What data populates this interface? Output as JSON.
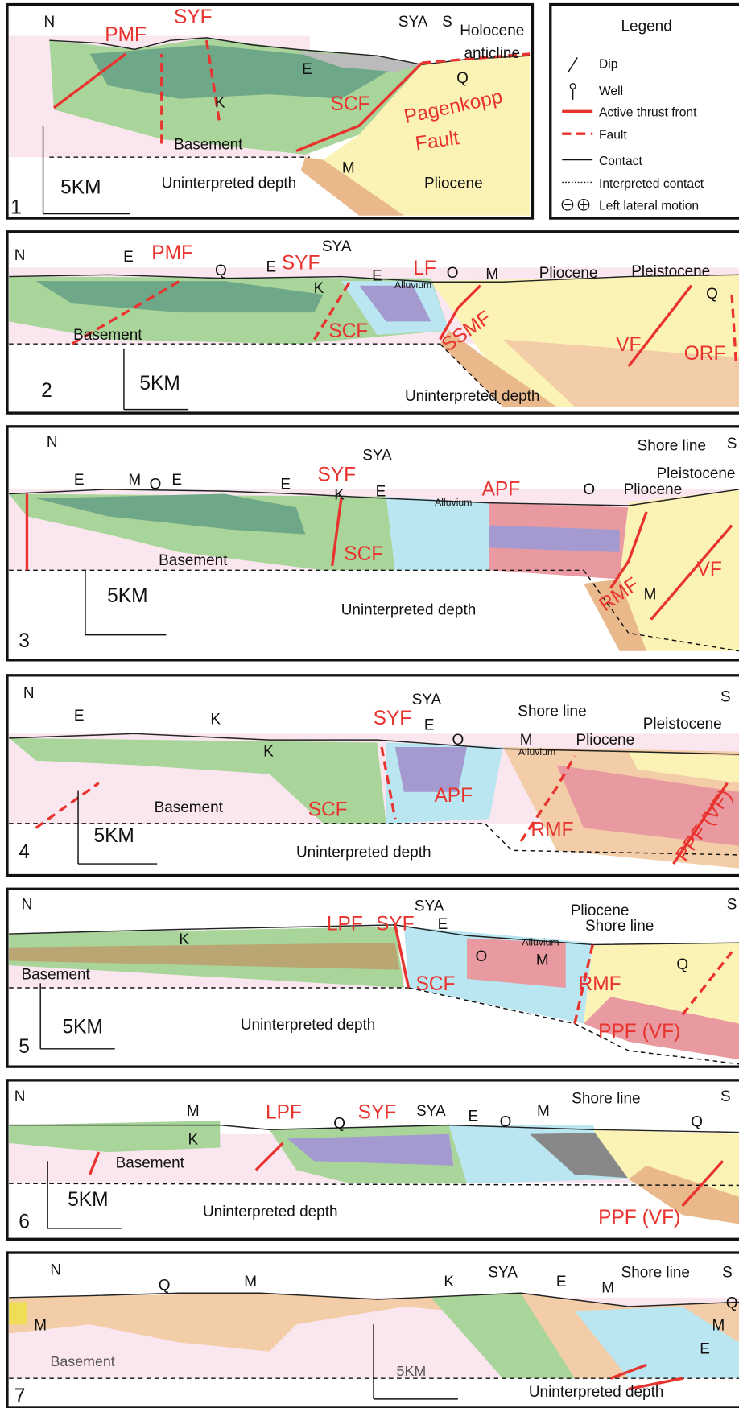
{
  "legend": {
    "title": "Legend",
    "items": [
      "Dip",
      "Well",
      "Active thrust front",
      "Fault",
      "Contact",
      "Interpreted contact",
      "Left lateral motion"
    ]
  },
  "sections": [
    {
      "labels": [
        "N",
        "PMF",
        "SYF",
        "SYA",
        "S",
        "Holocene",
        "anticline",
        "Q",
        "E",
        "K",
        "SCF",
        "Pagenkopp",
        "Fault",
        "Basement",
        "M",
        "Pliocene",
        "Uninterpreted depth",
        "5KM",
        "1"
      ]
    },
    {
      "labels": [
        "N",
        "E",
        "PMF",
        "Q",
        "E",
        "SYF",
        "SYA",
        "K",
        "E",
        "LF",
        "O",
        "M",
        "Alluvium",
        "Pliocene",
        "Pleistocene",
        "Q",
        "Basement",
        "SCF",
        "SSMF",
        "VF",
        "ORF",
        "5KM",
        "Uninterpreted depth",
        "2"
      ]
    },
    {
      "labels": [
        "N",
        "SYA",
        "Shore line",
        "S",
        "Pleistocene",
        "SYF",
        "E",
        "M",
        "O",
        "E",
        "E",
        "K",
        "E",
        "APF",
        "Alluvium",
        "O",
        "Pliocene",
        "Basement",
        "SCF",
        "RMF",
        "VF",
        "M",
        "5KM",
        "Uninterpreted depth",
        "3"
      ]
    },
    {
      "labels": [
        "N",
        "E",
        "K",
        "SYA",
        "S",
        "SYF",
        "E",
        "Shore line",
        "Pleistocene",
        "O",
        "M",
        "Pliocene",
        "Alluvium",
        "K",
        "Basement",
        "SCF",
        "APF",
        "RMF",
        "PPF (VF)",
        "5KM",
        "Uninterpreted depth",
        "4"
      ]
    },
    {
      "labels": [
        "N",
        "SYA",
        "S",
        "Pliocene",
        "Shore line",
        "LPF",
        "SYF",
        "E",
        "K",
        "Alluvium",
        "O",
        "M",
        "Q",
        "Basement",
        "SCF",
        "RMF",
        "PPF (VF)",
        "Uninterpreted depth",
        "5KM",
        "5"
      ]
    },
    {
      "labels": [
        "N",
        "LPF",
        "SYF",
        "SYA",
        "E",
        "O",
        "M",
        "Shore line",
        "S",
        "Q",
        "Q",
        "M",
        "K",
        "Basement",
        "5KM",
        "Uninterpreted depth",
        "PPF (VF)",
        "6"
      ]
    },
    {
      "labels": [
        "N",
        "SYA",
        "S",
        "Shore line",
        "K",
        "E",
        "M",
        "Q",
        "M",
        "M",
        "Q",
        "M",
        "E",
        "Basement",
        "5KM",
        "Uninterpreted depth",
        "7"
      ]
    }
  ]
}
